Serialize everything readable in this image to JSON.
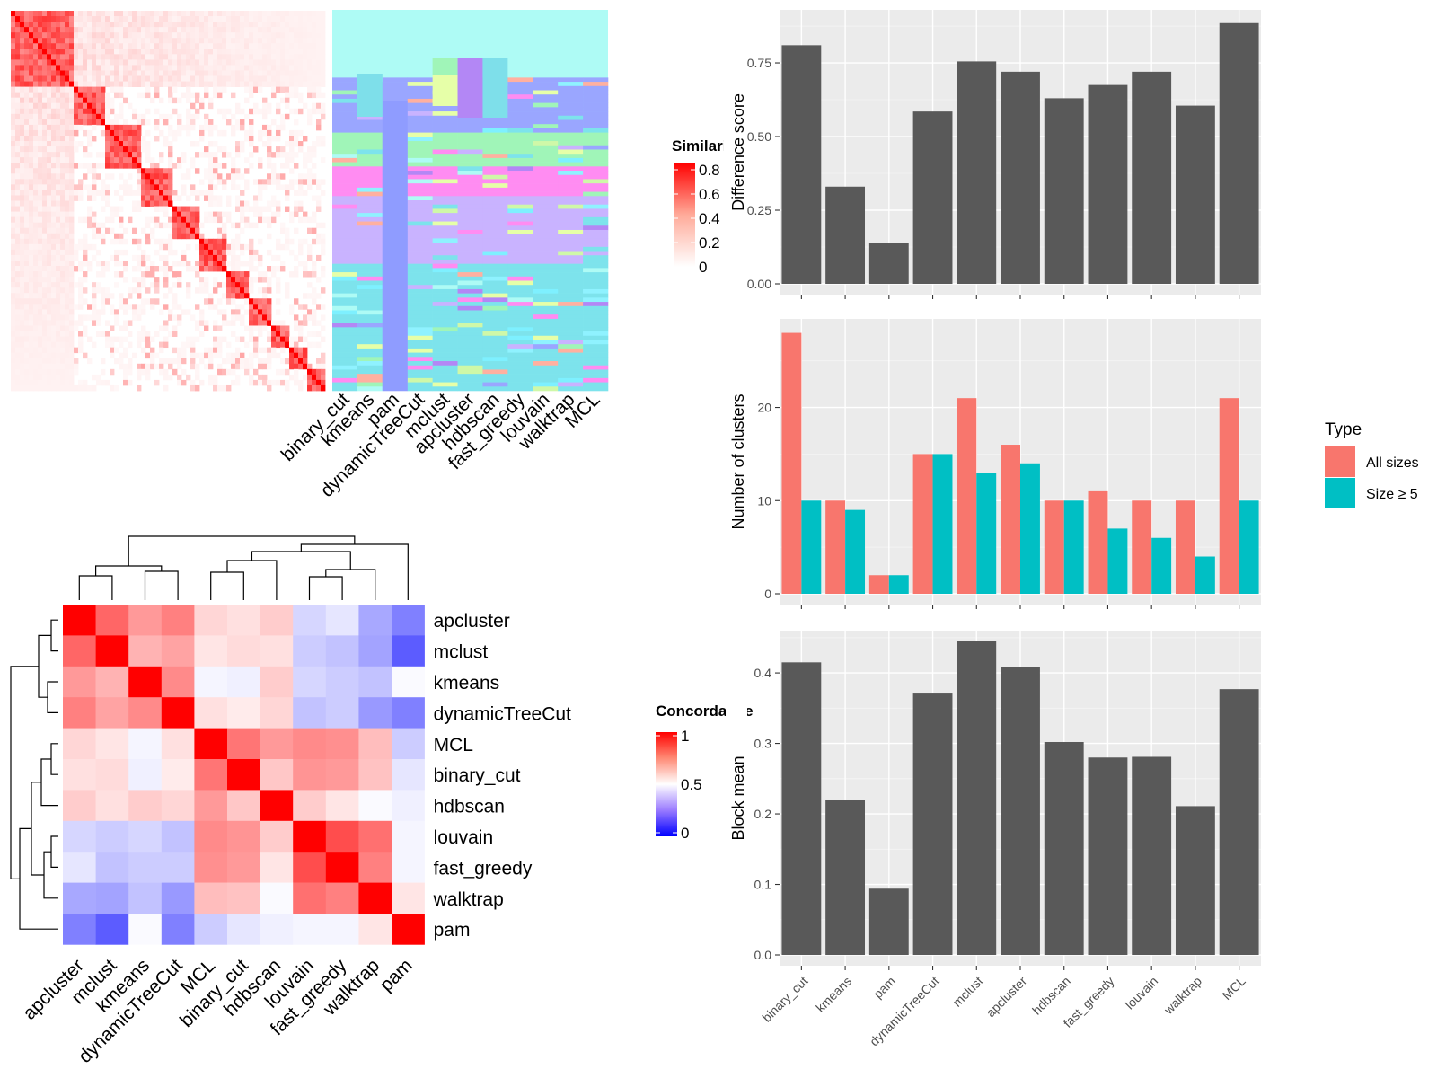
{
  "methods": [
    "binary_cut",
    "kmeans",
    "pam",
    "dynamicTreeCut",
    "mclust",
    "apcluster",
    "hdbscan",
    "fast_greedy",
    "louvain",
    "walktrap",
    "MCL"
  ],
  "similarity_legend": {
    "title": "Similarity",
    "ticks": [
      "0",
      "0.2",
      "0.4",
      "0.6",
      "0.8"
    ]
  },
  "concordance_legend": {
    "title": "Concordance",
    "ticks": [
      "0",
      "0.5",
      "1"
    ]
  },
  "type_legend": {
    "title": "Type",
    "items": [
      "All sizes",
      "Size ≥ 5"
    ]
  },
  "colors": {
    "bar": "#595959",
    "all_sizes": "#F8766D",
    "size_ge_5": "#00BFC4",
    "panel_bg": "#EBEBEB",
    "heat_high": "#FF0000",
    "heat_mid": "#FFFFFF",
    "heat_low": "#0000FF"
  },
  "chart_data": [
    {
      "type": "bar",
      "id": "difference-score",
      "ylabel": "Difference score",
      "categories": [
        "binary_cut",
        "kmeans",
        "pam",
        "dynamicTreeCut",
        "mclust",
        "apcluster",
        "hdbscan",
        "fast_greedy",
        "louvain",
        "walktrap",
        "MCL"
      ],
      "values": [
        0.81,
        0.33,
        0.14,
        0.585,
        0.755,
        0.72,
        0.63,
        0.675,
        0.72,
        0.605,
        0.885
      ],
      "ylim": [
        0,
        0.93
      ],
      "yticks": [
        0,
        0.25,
        0.5,
        0.75
      ],
      "ytick_labels": [
        "0.00",
        "0.25",
        "0.50",
        "0.75"
      ]
    },
    {
      "type": "bar",
      "id": "number-of-clusters",
      "ylabel": "Number of clusters",
      "categories": [
        "binary_cut",
        "kmeans",
        "pam",
        "dynamicTreeCut",
        "mclust",
        "apcluster",
        "hdbscan",
        "fast_greedy",
        "louvain",
        "walktrap",
        "MCL"
      ],
      "series": [
        {
          "name": "All sizes",
          "values": [
            28,
            10,
            2,
            15,
            21,
            16,
            10,
            11,
            10,
            10,
            21
          ]
        },
        {
          "name": "Size ≥ 5",
          "values": [
            10,
            9,
            2,
            15,
            13,
            14,
            10,
            7,
            6,
            4,
            10
          ]
        }
      ],
      "ylim": [
        0,
        29.5
      ],
      "yticks": [
        0,
        10,
        20
      ],
      "ytick_labels": [
        "0",
        "10",
        "20"
      ],
      "legend": "right"
    },
    {
      "type": "bar",
      "id": "block-mean",
      "ylabel": "Block mean",
      "categories": [
        "binary_cut",
        "kmeans",
        "pam",
        "dynamicTreeCut",
        "mclust",
        "apcluster",
        "hdbscan",
        "fast_greedy",
        "louvain",
        "walktrap",
        "MCL"
      ],
      "values": [
        0.415,
        0.22,
        0.094,
        0.372,
        0.445,
        0.409,
        0.302,
        0.28,
        0.281,
        0.211,
        0.377
      ],
      "ylim": [
        0,
        0.46
      ],
      "yticks": [
        0,
        0.1,
        0.2,
        0.3,
        0.4
      ],
      "ytick_labels": [
        "0.0",
        "0.1",
        "0.2",
        "0.3",
        "0.4"
      ]
    },
    {
      "type": "heatmap",
      "id": "concordance",
      "rows": [
        "apcluster",
        "mclust",
        "kmeans",
        "dynamicTreeCut",
        "MCL",
        "binary_cut",
        "hdbscan",
        "louvain",
        "fast_greedy",
        "walktrap",
        "pam"
      ],
      "cols": [
        "apcluster",
        "mclust",
        "kmeans",
        "dynamicTreeCut",
        "MCL",
        "binary_cut",
        "hdbscan",
        "louvain",
        "fast_greedy",
        "walktrap",
        "pam"
      ],
      "values": [
        [
          1.0,
          0.8,
          0.7,
          0.75,
          0.58,
          0.56,
          0.6,
          0.42,
          0.45,
          0.33,
          0.25
        ],
        [
          0.8,
          1.0,
          0.65,
          0.68,
          0.55,
          0.57,
          0.56,
          0.4,
          0.38,
          0.32,
          0.18
        ],
        [
          0.7,
          0.65,
          1.0,
          0.73,
          0.48,
          0.47,
          0.6,
          0.42,
          0.4,
          0.38,
          0.49
        ],
        [
          0.75,
          0.68,
          0.73,
          1.0,
          0.56,
          0.54,
          0.58,
          0.38,
          0.4,
          0.3,
          0.25
        ],
        [
          0.58,
          0.55,
          0.48,
          0.56,
          1.0,
          0.77,
          0.7,
          0.73,
          0.72,
          0.63,
          0.4
        ],
        [
          0.56,
          0.57,
          0.47,
          0.54,
          0.77,
          1.0,
          0.61,
          0.71,
          0.7,
          0.62,
          0.45
        ],
        [
          0.6,
          0.56,
          0.6,
          0.58,
          0.7,
          0.61,
          1.0,
          0.6,
          0.55,
          0.49,
          0.47
        ],
        [
          0.42,
          0.4,
          0.42,
          0.38,
          0.73,
          0.71,
          0.6,
          1.0,
          0.85,
          0.78,
          0.48
        ],
        [
          0.45,
          0.38,
          0.4,
          0.4,
          0.72,
          0.7,
          0.55,
          0.85,
          1.0,
          0.75,
          0.48
        ],
        [
          0.33,
          0.32,
          0.38,
          0.3,
          0.63,
          0.62,
          0.49,
          0.78,
          0.75,
          1.0,
          0.55
        ],
        [
          0.25,
          0.18,
          0.49,
          0.25,
          0.4,
          0.45,
          0.47,
          0.48,
          0.48,
          0.55,
          1.0
        ]
      ],
      "zlim": [
        0,
        1
      ]
    }
  ]
}
